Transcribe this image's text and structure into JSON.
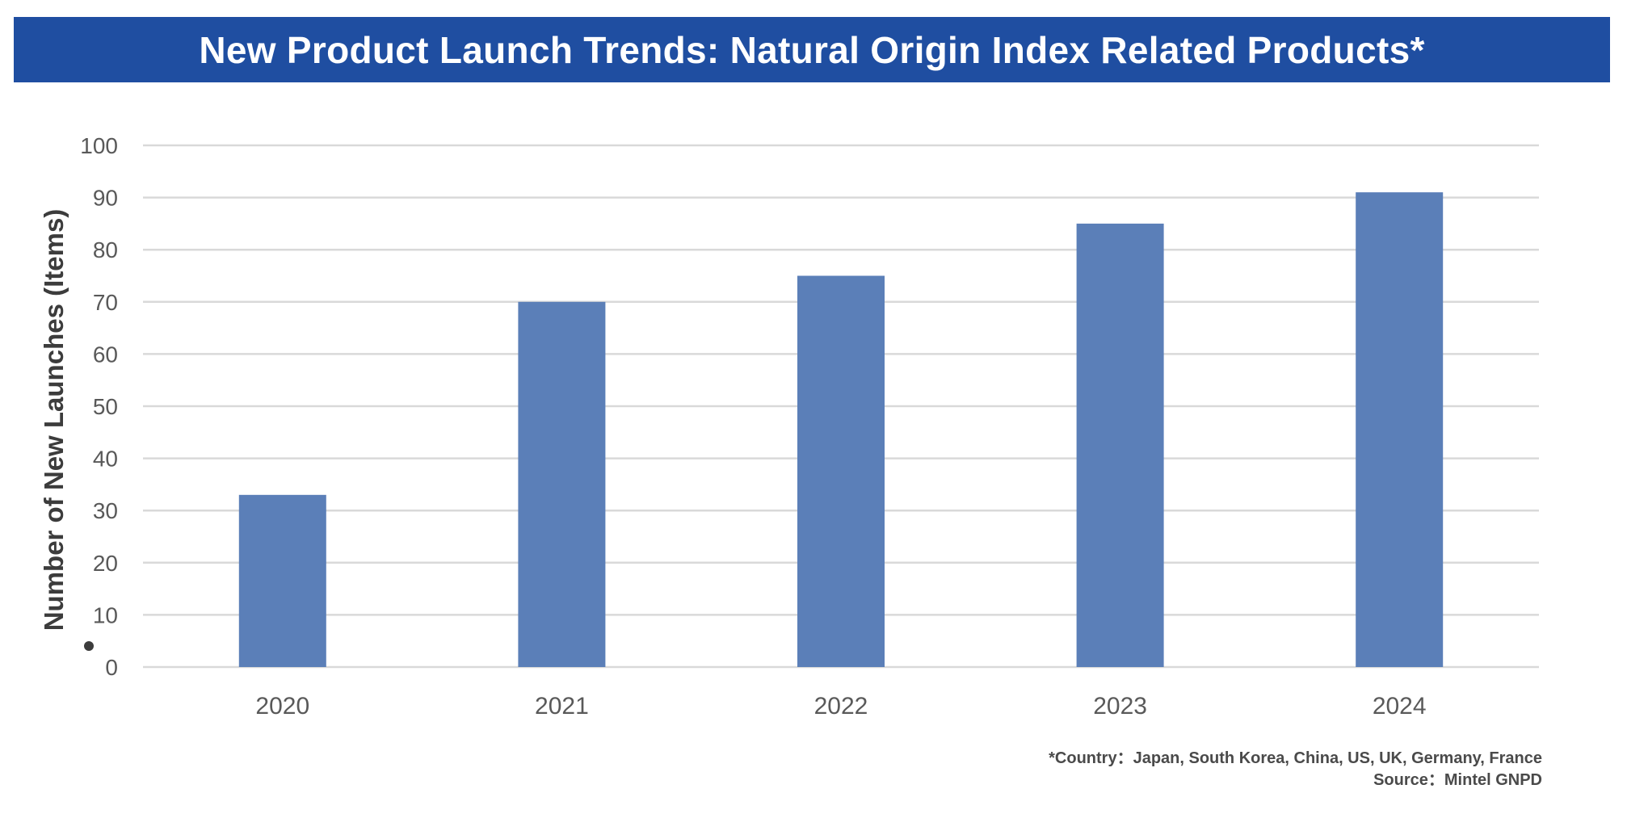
{
  "chart_data": {
    "type": "bar",
    "title": "New Product Launch Trends: Natural Origin Index Related Products*",
    "ylabel": "Number of New Launches (Items)",
    "xlabel": "",
    "categories": [
      "2020",
      "2021",
      "2022",
      "2023",
      "2024"
    ],
    "values": [
      33,
      70,
      75,
      85,
      91
    ],
    "ylim": [
      0,
      100
    ],
    "yticks": [
      0,
      10,
      20,
      30,
      40,
      50,
      60,
      70,
      80,
      90,
      100
    ],
    "grid": true,
    "bar_color": "#5b7fb8",
    "title_bg_color": "#1f4ea1"
  },
  "footnotes": {
    "country": "*Country：Japan, South Korea, China, US, UK, Germany, France",
    "source": "Source：Mintel GNPD"
  }
}
